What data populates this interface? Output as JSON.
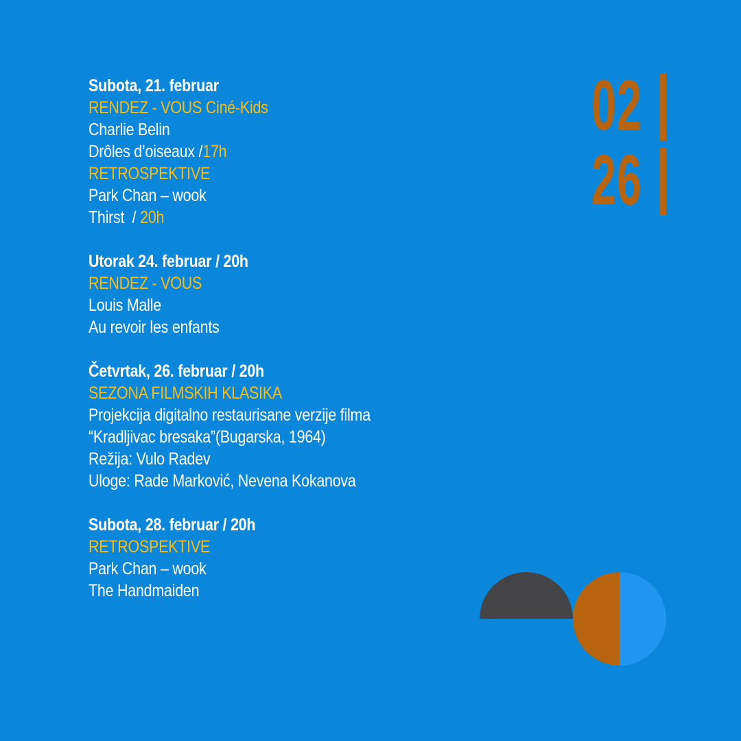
{
  "date_badge": {
    "month": "02",
    "day": "26"
  },
  "events": [
    {
      "heading": "Subota, 21. februar",
      "program1": "RENDEZ - VOUS Ciné-Kids",
      "director1": "Charlie Belin",
      "film1": "Drôles d’oiseaux /",
      "time1": "17h",
      "program2": "RETROSPEKTIVE",
      "director2": "Park Chan – wook",
      "film2": "Thirst  / ",
      "time2": "20h"
    },
    {
      "heading": "Utorak 24. februar / 20h",
      "program": "RENDEZ - VOUS",
      "director": "Louis Malle",
      "film": "Au revoir les enfants"
    },
    {
      "heading": "Četvrtak, 26. februar / 20h",
      "program": "SEZONA FILMSKIH KLASIKA",
      "lines": [
        "Projekcija digitalno restaurisane verzije filma",
        "“Kradljivac bresaka”(Bugarska, 1964)",
        "Režija: Vulo Radev",
        "Uloge: Rade Marković, Nevena Kokanova"
      ]
    },
    {
      "heading": "Subota, 28. februar / 20h",
      "program": "RETROSPEKTIVE",
      "director": "Park Chan – wook",
      "film": "The Handmaiden"
    }
  ],
  "colors": {
    "background": "#0a86da",
    "accent_yellow": "#fbbd12",
    "accent_orange": "#b8640f",
    "dark_gray": "#444446",
    "light_blue": "#2196f0"
  }
}
